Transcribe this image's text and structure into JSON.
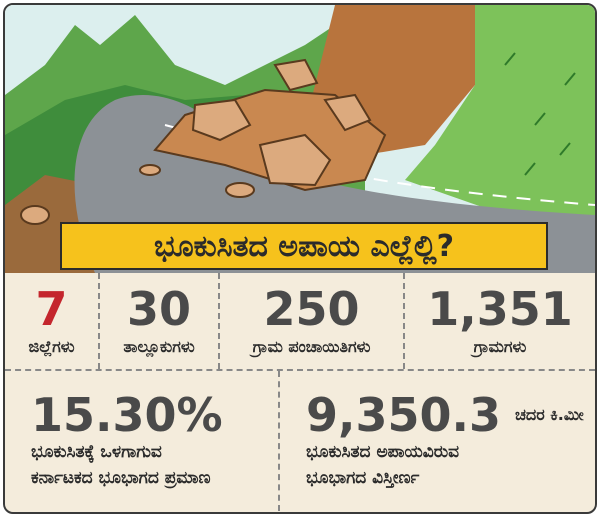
{
  "header": {
    "title": "ಭೂಕುಸಿತದ ಅಪಾಯ ಎಲ್ಲೆಲ್ಲಿ?"
  },
  "stats_row1": [
    {
      "value": "7",
      "label": "ಜಿಲ್ಲೆಗಳು"
    },
    {
      "value": "30",
      "label": "ತಾಲ್ಲೂಕುಗಳು"
    },
    {
      "value": "250",
      "label": "ಗ್ರಾಮ ಪಂಚಾಯಿತಿಗಳು"
    },
    {
      "value": "1,351",
      "label": "ಗ್ರಾಮಗಳು"
    }
  ],
  "stats_row2": [
    {
      "value": "15.30%",
      "lines": [
        "ಭೂಕುಸಿತಕ್ಕೆ ಒಳಗಾಗುವ",
        "ಕರ್ನಾಟಕದ ಭೂಭಾಗದ ಪ್ರಮಾಣ"
      ]
    },
    {
      "value": "9,350.3",
      "unit": "ಚದರ ಕಿ.ಮೀ",
      "lines": [
        "ಭೂಕುಸಿತದ ಅಪಾಯವಿರುವ",
        "ಭೂಭಾಗದ ವಿಸ್ತೀರ್ಣ"
      ]
    }
  ]
}
